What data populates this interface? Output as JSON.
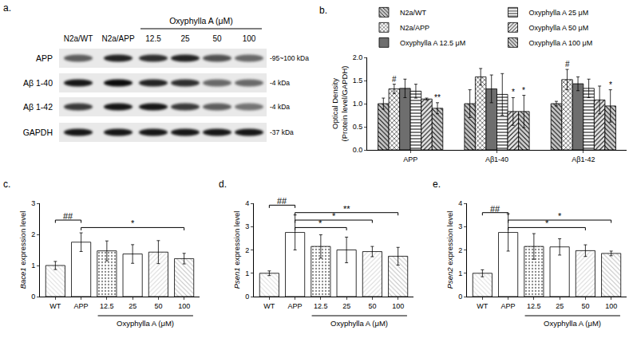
{
  "blot": {
    "panel": "a.",
    "group_label": "Oxyphylla A (μM)",
    "lanes": [
      "N2a/WT",
      "N2a/APP",
      "12.5",
      "25",
      "50",
      "100"
    ],
    "group_lanes": [
      "12.5",
      "25",
      "50",
      "100"
    ],
    "rows": [
      {
        "name": "APP",
        "size": "-95~100 kDa",
        "band_intensity": [
          0.6,
          0.85,
          0.8,
          0.85,
          0.65,
          0.55
        ]
      },
      {
        "name": "Aβ 1-40",
        "size": "-4 kDa",
        "band_intensity": [
          0.9,
          0.95,
          0.85,
          0.8,
          0.55,
          0.55
        ]
      },
      {
        "name": "Aβ 1-42",
        "size": "-4 kDa",
        "band_intensity": [
          0.75,
          0.9,
          0.9,
          0.75,
          0.6,
          0.5
        ]
      },
      {
        "name": "GAPDH",
        "size": "-37 kDa",
        "band_intensity": [
          0.9,
          0.9,
          0.9,
          0.9,
          0.9,
          0.9
        ]
      }
    ]
  },
  "chart_data": [
    {
      "panel": "b.",
      "type": "bar",
      "ylabel": "Optical Density\n(Protein level/GAPDH)",
      "categories": [
        "APP",
        "Aβ1-40",
        "Aβ1-42"
      ],
      "ylim": [
        0,
        2.0
      ],
      "yticks": [
        {
          "value": 0,
          "label": "0.0"
        },
        0.5,
        {
          "value": 1,
          "label": "1.0"
        },
        1.5,
        {
          "value": 2,
          "label": "2.0"
        }
      ],
      "grid": false,
      "legend": "top",
      "series": [
        {
          "name": "N2a/WT",
          "color": "#c8c8c8",
          "values": [
            1.0,
            1.0,
            1.0
          ],
          "errors": [
            0.12,
            0.3,
            0.05
          ],
          "significance": [
            null,
            null,
            null
          ]
        },
        {
          "name": "N2a/APP",
          "color": "#ffffff",
          "values": [
            1.32,
            1.58,
            1.52
          ],
          "errors": [
            0.1,
            0.18,
            0.22
          ],
          "significance": [
            "#",
            null,
            "#"
          ]
        },
        {
          "name": "Oxyphylla A 12.5 μM",
          "color": "#6e6e6e",
          "values": [
            1.33,
            1.32,
            1.43
          ],
          "errors": [
            0.2,
            0.3,
            0.15
          ],
          "significance": [
            null,
            null,
            null
          ]
        },
        {
          "name": "Oxyphylla A 25 μM",
          "color": "#ffffff",
          "values": [
            1.27,
            1.2,
            1.33
          ],
          "errors": [
            0.15,
            0.45,
            0.2
          ],
          "significance": [
            null,
            null,
            null
          ]
        },
        {
          "name": "Oxyphylla A 50 μM",
          "color": "#e6e6e6",
          "values": [
            1.1,
            0.83,
            1.08
          ],
          "errors": [
            0.02,
            0.3,
            0.3
          ],
          "significance": [
            null,
            "*",
            null
          ]
        },
        {
          "name": "Oxyphylla A 100 μM",
          "color": "#d0d0d0",
          "values": [
            0.9,
            0.83,
            0.95
          ],
          "errors": [
            0.12,
            0.35,
            0.35
          ],
          "significance": [
            "**",
            "*",
            "*"
          ]
        }
      ]
    },
    {
      "panel": "c.",
      "type": "bar",
      "ylabel": "Bace1 expression level",
      "categories": [
        "WT",
        "APP",
        "12.5",
        "25",
        "50",
        "100"
      ],
      "values": [
        1.0,
        1.75,
        1.47,
        1.37,
        1.43,
        1.22
      ],
      "errors": [
        0.13,
        0.3,
        0.32,
        0.3,
        0.37,
        0.17
      ],
      "colors": [
        "#dddddd",
        "#ffffff",
        "#8a8a8a",
        "#ffffff",
        "#d8d8d8",
        "#c0c0c0"
      ],
      "ylim": [
        0,
        3
      ],
      "yticks": [
        0,
        1,
        2,
        3
      ],
      "grid": false,
      "group_label": {
        "text": "Oxyphylla A (μM)",
        "categories": [
          "12.5",
          "25",
          "50",
          "100"
        ]
      },
      "comparisons": [
        {
          "from": "APP",
          "to": "100",
          "label": "*"
        },
        {
          "from": "WT",
          "to": "APP",
          "label": "##"
        }
      ]
    },
    {
      "panel": "d.",
      "type": "bar",
      "ylabel": "Psen1 expression level",
      "categories": [
        "WT",
        "APP",
        "12.5",
        "25",
        "50",
        "100"
      ],
      "values": [
        1.0,
        2.75,
        2.15,
        2.0,
        1.93,
        1.73
      ],
      "errors": [
        0.1,
        0.75,
        0.5,
        0.55,
        0.22,
        0.38
      ],
      "colors": [
        "#dddddd",
        "#ffffff",
        "#8a8a8a",
        "#ffffff",
        "#d8d8d8",
        "#c0c0c0"
      ],
      "ylim": [
        0,
        4
      ],
      "yticks": [
        0,
        1,
        2,
        3,
        4
      ],
      "grid": false,
      "group_label": {
        "text": "Oxyphylla A (μM)",
        "categories": [
          "12.5",
          "25",
          "50",
          "100"
        ]
      },
      "comparisons": [
        {
          "from": "APP",
          "to": "25",
          "label": "*"
        },
        {
          "from": "APP",
          "to": "50",
          "label": "*"
        },
        {
          "from": "APP",
          "to": "100",
          "label": "**"
        },
        {
          "from": "WT",
          "to": "APP",
          "label": "##"
        }
      ]
    },
    {
      "panel": "e.",
      "type": "bar",
      "ylabel": "Psen2 expression level",
      "categories": [
        "WT",
        "APP",
        "12.5",
        "25",
        "50",
        "100"
      ],
      "values": [
        1.0,
        2.75,
        2.15,
        2.13,
        1.97,
        1.85
      ],
      "errors": [
        0.15,
        0.8,
        0.55,
        0.35,
        0.25,
        0.1
      ],
      "colors": [
        "#dddddd",
        "#ffffff",
        "#8a8a8a",
        "#ffffff",
        "#d8d8d8",
        "#c0c0c0"
      ],
      "ylim": [
        0,
        4
      ],
      "yticks": [
        0,
        1,
        2,
        3,
        4
      ],
      "grid": false,
      "group_label": {
        "text": "Oxyphylla A (μM)",
        "categories": [
          "12.5",
          "25",
          "50",
          "100"
        ]
      },
      "comparisons": [
        {
          "from": "APP",
          "to": "50",
          "label": "*"
        },
        {
          "from": "APP",
          "to": "100",
          "label": "*"
        },
        {
          "from": "WT",
          "to": "APP",
          "label": "##"
        }
      ]
    }
  ]
}
